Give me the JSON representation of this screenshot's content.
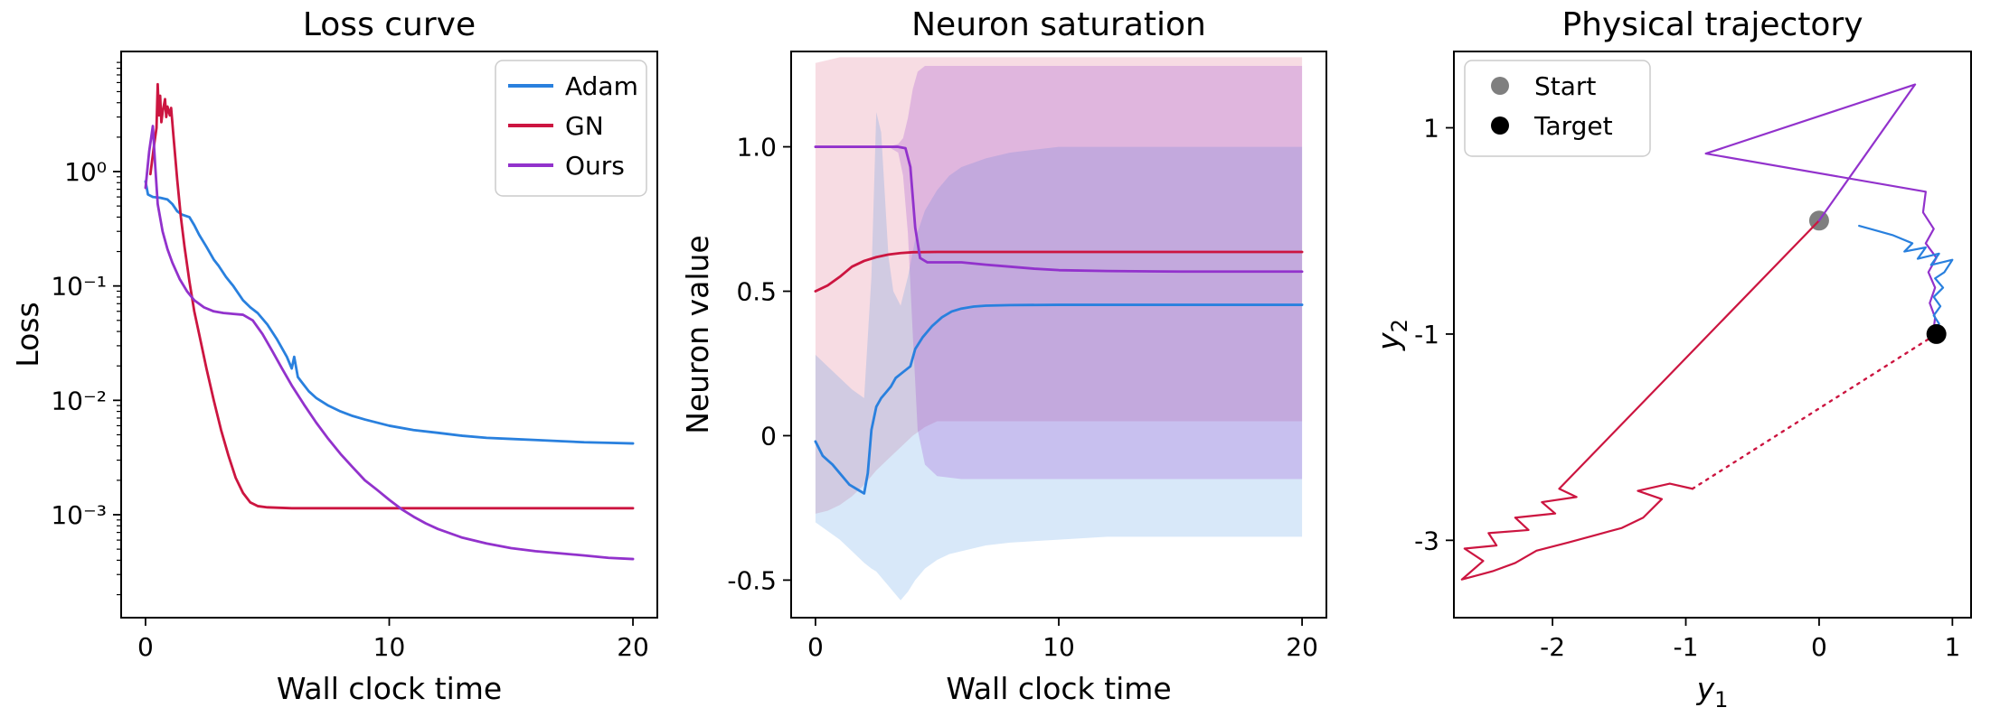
{
  "palette": {
    "adam": "#2980de",
    "gn": "#cc1540",
    "ours": "#9232cc",
    "start": "#7f7f7f",
    "target": "#000000",
    "axis": "#000000",
    "legend_border": "#cccccc",
    "background": "#ffffff"
  },
  "chart_data": [
    {
      "id": "loss-curve-chart",
      "type": "line",
      "title": "Loss curve",
      "xlabel": "Wall clock time",
      "ylabel": "Loss",
      "xlim": [
        -1,
        21
      ],
      "yscale": "log",
      "ylim_log": [
        -3.9,
        1.05
      ],
      "grid": false,
      "xticks": [
        {
          "v": 0,
          "label": "0"
        },
        {
          "v": 10,
          "label": "10"
        },
        {
          "v": 20,
          "label": "20"
        }
      ],
      "yticks": [
        {
          "v": 0,
          "label": "10⁰"
        },
        {
          "v": -1,
          "label": "10⁻¹"
        },
        {
          "v": -2,
          "label": "10⁻²"
        },
        {
          "v": -3,
          "label": "10⁻³"
        }
      ],
      "legend": {
        "loc": "upper right",
        "items": [
          {
            "label": "Adam",
            "color": "adam",
            "type": "line"
          },
          {
            "label": "GN",
            "color": "gn",
            "type": "line"
          },
          {
            "label": "Ours",
            "color": "ours",
            "type": "line"
          }
        ]
      },
      "series": [
        {
          "name": "adam-loss-line",
          "color": "adam",
          "width": 2.8,
          "x": [
            0,
            0.1,
            0.3,
            0.6,
            0.9,
            1.1,
            1.3,
            1.5,
            1.8,
            2.0,
            2.2,
            2.5,
            2.8,
            3.0,
            3.3,
            3.6,
            4.0,
            4.3,
            4.6,
            5.0,
            5.4,
            5.8,
            6.0,
            6.1,
            6.25,
            6.4,
            6.7,
            7.0,
            7.5,
            8.0,
            8.5,
            9.0,
            10,
            11,
            12,
            13,
            14,
            15,
            16,
            17,
            18,
            19,
            20
          ],
          "y": [
            0.82,
            0.63,
            0.6,
            0.59,
            0.57,
            0.52,
            0.45,
            0.42,
            0.4,
            0.34,
            0.28,
            0.22,
            0.17,
            0.15,
            0.12,
            0.1,
            0.075,
            0.065,
            0.058,
            0.046,
            0.034,
            0.024,
            0.019,
            0.024,
            0.016,
            0.0145,
            0.012,
            0.0105,
            0.009,
            0.008,
            0.0073,
            0.0068,
            0.006,
            0.0055,
            0.0052,
            0.0049,
            0.0047,
            0.0046,
            0.0045,
            0.0044,
            0.0043,
            0.00425,
            0.0042
          ]
        },
        {
          "name": "gn-loss-line",
          "color": "gn",
          "width": 2.8,
          "x": [
            0.2,
            0.35,
            0.45,
            0.5,
            0.55,
            0.6,
            0.65,
            0.7,
            0.8,
            0.85,
            0.9,
            1.0,
            1.05,
            1.15,
            1.3,
            1.45,
            1.6,
            1.8,
            2.0,
            2.2,
            2.5,
            2.8,
            3.1,
            3.4,
            3.7,
            4.0,
            4.3,
            4.6,
            5.0,
            5.5,
            6,
            7,
            8,
            10,
            12,
            15,
            20
          ],
          "y": [
            0.95,
            1.7,
            2.4,
            5.8,
            3.1,
            4.6,
            2.7,
            3.3,
            4.3,
            3.0,
            3.7,
            3.1,
            3.6,
            2.0,
            0.85,
            0.4,
            0.22,
            0.11,
            0.06,
            0.038,
            0.019,
            0.01,
            0.0055,
            0.0033,
            0.0021,
            0.00155,
            0.00128,
            0.00119,
            0.00116,
            0.00115,
            0.00114,
            0.00114,
            0.00114,
            0.00114,
            0.00114,
            0.00114,
            0.00114
          ]
        },
        {
          "name": "ours-loss-line",
          "color": "ours",
          "width": 2.8,
          "x": [
            0,
            0.15,
            0.3,
            0.4,
            0.5,
            0.7,
            0.9,
            1.1,
            1.4,
            1.7,
            2.0,
            2.4,
            2.8,
            3.2,
            3.6,
            4.0,
            4.4,
            4.8,
            5.2,
            5.6,
            6.0,
            6.5,
            7.0,
            7.5,
            8.0,
            8.5,
            9.0,
            9.5,
            10,
            10.5,
            11,
            11.5,
            12,
            13,
            14,
            15,
            16,
            17,
            18,
            19,
            20
          ],
          "y": [
            0.72,
            1.5,
            2.5,
            1.1,
            0.52,
            0.3,
            0.21,
            0.16,
            0.115,
            0.09,
            0.075,
            0.065,
            0.06,
            0.058,
            0.057,
            0.056,
            0.05,
            0.038,
            0.027,
            0.019,
            0.0135,
            0.0092,
            0.0064,
            0.0046,
            0.0034,
            0.0026,
            0.002,
            0.00165,
            0.00135,
            0.00112,
            0.00096,
            0.00084,
            0.00075,
            0.00063,
            0.00056,
            0.00051,
            0.00048,
            0.00046,
            0.00044,
            0.00042,
            0.00041
          ]
        }
      ]
    },
    {
      "id": "neuron-saturation-chart",
      "type": "line",
      "title": "Neuron saturation",
      "xlabel": "Wall clock time",
      "ylabel": "Neuron value",
      "xlim": [
        -1,
        21
      ],
      "ylim": [
        -0.63,
        1.33
      ],
      "grid": false,
      "xticks": [
        {
          "v": 0,
          "label": "0"
        },
        {
          "v": 10,
          "label": "10"
        },
        {
          "v": 20,
          "label": "20"
        }
      ],
      "yticks": [
        {
          "v": -0.5,
          "label": "-0.5"
        },
        {
          "v": 0,
          "label": "0"
        },
        {
          "v": 0.5,
          "label": "0.5"
        },
        {
          "v": 1.0,
          "label": "1.0"
        }
      ],
      "bands": [
        {
          "name": "gn-neuron-band",
          "color": "gn",
          "opacity": 0.15,
          "x": [
            0,
            0.5,
            1,
            1.5,
            2,
            2.5,
            3,
            3.5,
            4,
            4.5,
            5,
            6,
            8,
            10,
            15,
            20
          ],
          "upper": [
            1.29,
            1.3,
            1.31,
            1.31,
            1.31,
            1.31,
            1.31,
            1.31,
            1.31,
            1.31,
            1.31,
            1.31,
            1.31,
            1.31,
            1.31,
            1.31
          ],
          "lower": [
            -0.27,
            -0.26,
            -0.24,
            -0.21,
            -0.17,
            -0.12,
            -0.08,
            -0.04,
            0.0,
            0.03,
            0.05,
            0.05,
            0.05,
            0.05,
            0.05,
            0.05
          ]
        },
        {
          "name": "adam-neuron-band",
          "color": "adam",
          "opacity": 0.18,
          "x": [
            0,
            0.5,
            1,
            1.5,
            2,
            2.3,
            2.5,
            2.7,
            3.0,
            3.2,
            3.5,
            3.8,
            4.1,
            4.5,
            5,
            5.5,
            6,
            7,
            8,
            10,
            12,
            15,
            20
          ],
          "upper": [
            0.28,
            0.24,
            0.2,
            0.16,
            0.13,
            0.55,
            1.12,
            1.05,
            0.62,
            0.5,
            0.45,
            0.55,
            0.68,
            0.78,
            0.85,
            0.9,
            0.93,
            0.96,
            0.98,
            1.0,
            1.0,
            1.0,
            1.0
          ],
          "lower": [
            -0.3,
            -0.33,
            -0.36,
            -0.4,
            -0.44,
            -0.46,
            -0.47,
            -0.49,
            -0.52,
            -0.54,
            -0.57,
            -0.54,
            -0.5,
            -0.46,
            -0.43,
            -0.41,
            -0.4,
            -0.38,
            -0.37,
            -0.36,
            -0.35,
            -0.35,
            -0.35
          ]
        },
        {
          "name": "ours-neuron-band",
          "color": "ours",
          "opacity": 0.22,
          "x": [
            0,
            1,
            2,
            3,
            3.4,
            3.6,
            3.8,
            4.0,
            4.2,
            4.5,
            5,
            6,
            8,
            10,
            15,
            20
          ],
          "upper": [
            1.0,
            1.0,
            1.0,
            1.0,
            1.01,
            1.03,
            1.1,
            1.2,
            1.26,
            1.28,
            1.28,
            1.28,
            1.28,
            1.28,
            1.28,
            1.28
          ],
          "lower": [
            1.0,
            1.0,
            1.0,
            1.0,
            0.98,
            0.9,
            0.7,
            0.35,
            0.02,
            -0.1,
            -0.14,
            -0.15,
            -0.15,
            -0.15,
            -0.15,
            -0.15
          ]
        }
      ],
      "series": [
        {
          "name": "adam-neuron-line",
          "color": "adam",
          "width": 2.8,
          "x": [
            0,
            0.3,
            0.7,
            1.0,
            1.4,
            1.8,
            2.0,
            2.15,
            2.3,
            2.5,
            2.7,
            2.9,
            3.1,
            3.3,
            3.6,
            3.9,
            4.1,
            4.4,
            4.8,
            5.2,
            5.6,
            6.0,
            6.5,
            7,
            8,
            10,
            12,
            15,
            20
          ],
          "y": [
            -0.02,
            -0.07,
            -0.1,
            -0.13,
            -0.17,
            -0.19,
            -0.2,
            -0.13,
            0.02,
            0.1,
            0.13,
            0.15,
            0.17,
            0.2,
            0.22,
            0.24,
            0.3,
            0.34,
            0.38,
            0.41,
            0.43,
            0.44,
            0.447,
            0.45,
            0.452,
            0.453,
            0.453,
            0.453,
            0.453
          ]
        },
        {
          "name": "gn-neuron-line",
          "color": "gn",
          "width": 2.8,
          "x": [
            0,
            0.5,
            1.0,
            1.5,
            2.0,
            2.5,
            3.0,
            3.5,
            4.0,
            5,
            6,
            8,
            10,
            15,
            20
          ],
          "y": [
            0.5,
            0.52,
            0.55,
            0.585,
            0.605,
            0.618,
            0.627,
            0.632,
            0.635,
            0.636,
            0.636,
            0.636,
            0.636,
            0.636,
            0.636
          ]
        },
        {
          "name": "ours-neuron-line",
          "color": "ours",
          "width": 2.8,
          "x": [
            0,
            1,
            2,
            3,
            3.4,
            3.7,
            3.9,
            4.1,
            4.3,
            4.6,
            5,
            6,
            7,
            8,
            9,
            10,
            12,
            15,
            20
          ],
          "y": [
            1.0,
            1.0,
            1.0,
            1.0,
            1.0,
            0.995,
            0.93,
            0.72,
            0.615,
            0.6,
            0.6,
            0.6,
            0.592,
            0.585,
            0.578,
            0.573,
            0.57,
            0.568,
            0.568
          ]
        }
      ]
    },
    {
      "id": "physical-trajectory-chart",
      "type": "line",
      "title": "Physical trajectory",
      "xlabel": "y_1",
      "ylabel": "y_2",
      "xlim": [
        -2.74,
        1.14
      ],
      "ylim": [
        -3.75,
        1.74
      ],
      "grid": false,
      "xticks": [
        {
          "v": -2,
          "label": "-2"
        },
        {
          "v": -1,
          "label": "-1"
        },
        {
          "v": 0,
          "label": "0"
        },
        {
          "v": 1,
          "label": "1"
        }
      ],
      "yticks": [
        {
          "v": -3,
          "label": "-3"
        },
        {
          "v": -1,
          "label": "-1"
        },
        {
          "v": 1,
          "label": "1"
        }
      ],
      "legend": {
        "loc": "upper left",
        "items": [
          {
            "label": "Start",
            "color": "start",
            "type": "dot"
          },
          {
            "label": "Target",
            "color": "target",
            "type": "dot"
          }
        ]
      },
      "series": [
        {
          "name": "gn-trajectory-final",
          "color": "gn",
          "width": 2.4,
          "dash": "2.5 6.5",
          "xy": [
            [
              -0.95,
              -2.5
            ],
            [
              0.88,
              -1.0
            ]
          ]
        },
        {
          "name": "gn-trajectory",
          "color": "gn",
          "width": 2.2,
          "xy": [
            [
              0,
              0.1
            ],
            [
              -1.95,
              -2.5
            ],
            [
              -1.82,
              -2.58
            ],
            [
              -2.08,
              -2.63
            ],
            [
              -1.98,
              -2.74
            ],
            [
              -2.28,
              -2.78
            ],
            [
              -2.18,
              -2.9
            ],
            [
              -2.48,
              -2.93
            ],
            [
              -2.42,
              -3.05
            ],
            [
              -2.66,
              -3.08
            ],
            [
              -2.52,
              -3.2
            ],
            [
              -2.68,
              -3.38
            ],
            [
              -2.45,
              -3.3
            ],
            [
              -2.28,
              -3.22
            ],
            [
              -2.12,
              -3.1
            ],
            [
              -1.88,
              -3.02
            ],
            [
              -1.68,
              -2.95
            ],
            [
              -1.48,
              -2.88
            ],
            [
              -1.32,
              -2.78
            ],
            [
              -1.18,
              -2.6
            ],
            [
              -1.36,
              -2.52
            ],
            [
              -1.12,
              -2.45
            ],
            [
              -0.95,
              -2.5
            ]
          ]
        },
        {
          "name": "ours-trajectory",
          "color": "ours",
          "width": 2.2,
          "xy": [
            [
              0,
              0.1
            ],
            [
              0.72,
              1.42
            ],
            [
              -0.85,
              0.75
            ],
            [
              0.8,
              0.38
            ],
            [
              0.78,
              0.18
            ],
            [
              0.86,
              0.02
            ],
            [
              0.8,
              -0.12
            ],
            [
              0.88,
              -0.26
            ],
            [
              0.82,
              -0.4
            ],
            [
              0.87,
              -0.55
            ],
            [
              0.83,
              -0.7
            ],
            [
              0.87,
              -0.84
            ],
            [
              0.86,
              -0.95
            ],
            [
              0.88,
              -1.0
            ]
          ]
        },
        {
          "name": "adam-trajectory",
          "color": "adam",
          "width": 2.2,
          "xy": [
            [
              0.3,
              0.05
            ],
            [
              0.55,
              -0.04
            ],
            [
              0.7,
              -0.12
            ],
            [
              0.64,
              -0.2
            ],
            [
              0.8,
              -0.16
            ],
            [
              0.74,
              -0.27
            ],
            [
              0.9,
              -0.22
            ],
            [
              0.84,
              -0.33
            ],
            [
              1.0,
              -0.28
            ],
            [
              0.94,
              -0.4
            ],
            [
              0.87,
              -0.46
            ],
            [
              0.93,
              -0.55
            ],
            [
              0.86,
              -0.64
            ],
            [
              0.91,
              -0.73
            ],
            [
              0.86,
              -0.82
            ],
            [
              0.9,
              -0.9
            ],
            [
              0.87,
              -0.97
            ],
            [
              0.88,
              -1.0
            ]
          ]
        }
      ],
      "points": [
        {
          "name": "start-point",
          "x": 0,
          "y": 0.1,
          "r": 11,
          "color": "start",
          "layer": "below"
        },
        {
          "name": "target-point",
          "x": 0.88,
          "y": -1.0,
          "r": 11,
          "color": "target",
          "layer": "above"
        }
      ]
    }
  ]
}
